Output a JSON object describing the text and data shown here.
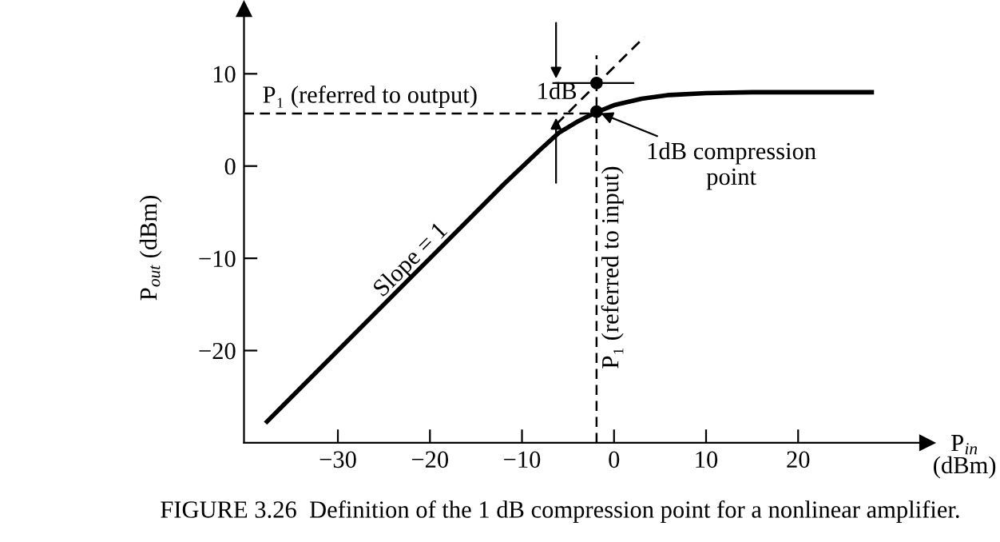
{
  "chart_data": {
    "type": "line",
    "xlabel": "P$_{in}$\n(dBm)",
    "ylabel": "P$_{out}$ (dBm)",
    "xlim": [
      -40.2,
      34
    ],
    "ylim": [
      -30,
      17
    ],
    "xticks": [
      -30,
      -20,
      -10,
      0,
      10,
      20
    ],
    "yticks": [
      -20,
      -10,
      0,
      10
    ],
    "grid": false,
    "series": [
      {
        "color": "#000000",
        "line_style": "solid",
        "x": [
          -37.7,
          -20,
          -12,
          -8,
          -6,
          -4,
          -2,
          0,
          3,
          6,
          10,
          15,
          28
        ],
        "values": [
          -27.7,
          -10,
          -2,
          1.8,
          3.6,
          4.8,
          5.8,
          6.6,
          7.3,
          7.7,
          7.9,
          8,
          8
        ]
      },
      {
        "color": "#000000",
        "line_style": "dashed",
        "x": [
          -6.3,
          3.3
        ],
        "values": [
          4.5,
          14
        ]
      },
      {
        "type": "scatter",
        "color": "#000000",
        "marker": "circle",
        "x": [
          -1.9,
          -1.9
        ],
        "values": [
          9.0,
          5.9
        ]
      }
    ],
    "ref_lines": [
      {
        "axis": "y",
        "value": 5.7,
        "label": "P₁ (referred to output)",
        "line_style": "dashed",
        "color": "#000000"
      },
      {
        "axis": "x",
        "value": -1.9,
        "label": "P₁ (referred to input)",
        "line_style": "dashed",
        "color": "#000000"
      }
    ],
    "annotations": [
      "1dB",
      {
        "text": "1dB compression point",
        "x": -1.9,
        "y": 5.9
      },
      "Slope = 1",
      "FIGURE 3.26  Definition of the 1 dB compression point for a nonlinear amplifier."
    ]
  }
}
